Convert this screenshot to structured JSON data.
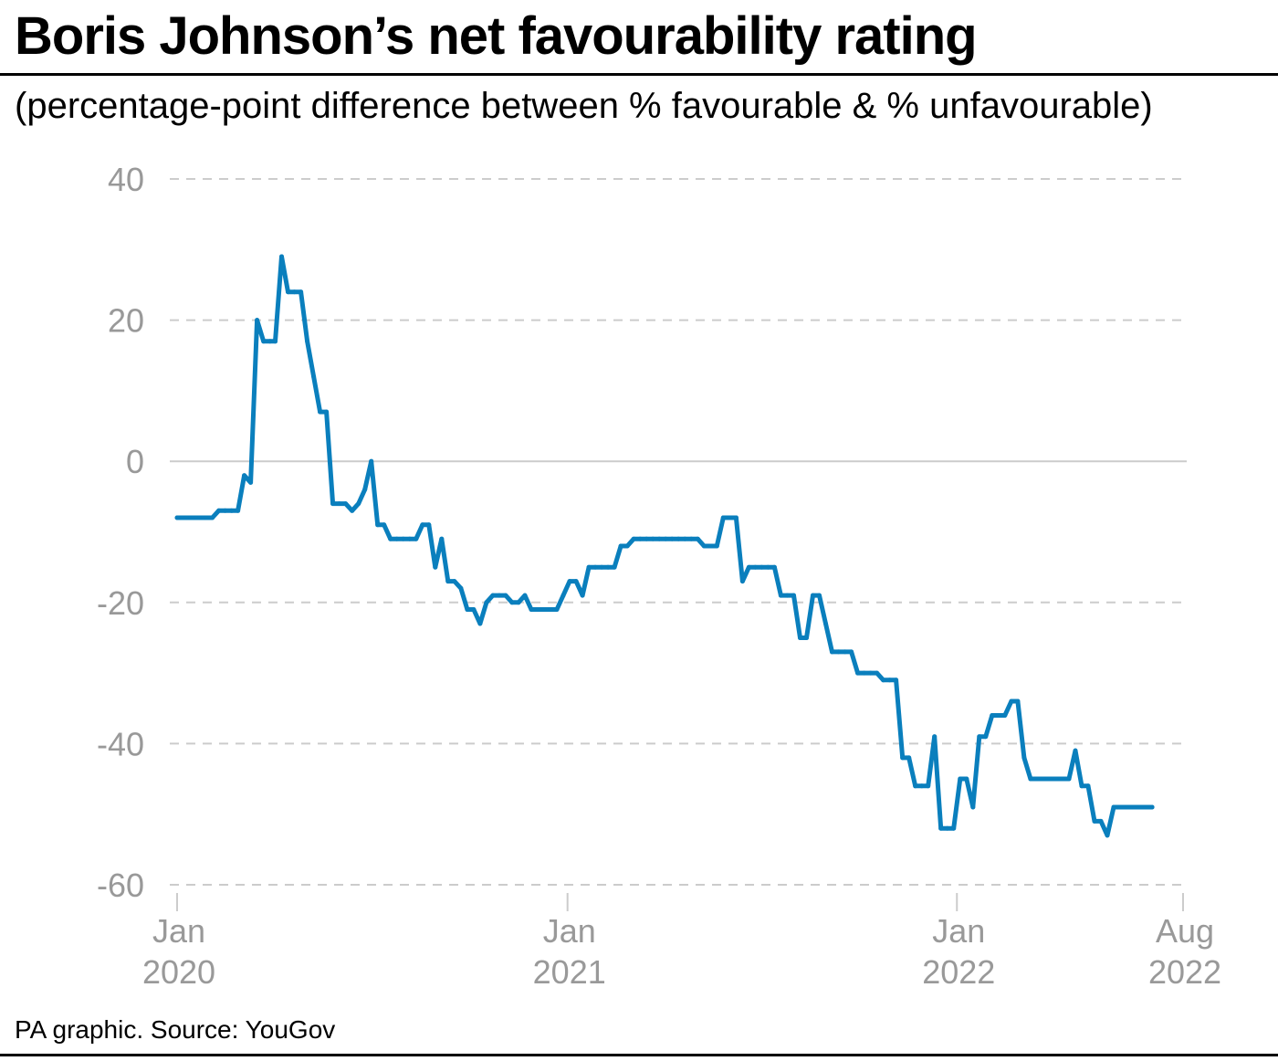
{
  "title": "Boris Johnson’s net favourability rating",
  "subtitle": "(percentage-point difference between % favourable & % unfavourable)",
  "source": "PA graphic. Source: YouGov",
  "colors": {
    "line": "#0a7fbd",
    "grid": "#cccccc",
    "tick_text": "#999999",
    "rule": "#000000"
  },
  "chart_data": {
    "type": "line",
    "title": "Boris Johnson’s net favourability rating",
    "subtitle": "(percentage-point difference between % favourable & % unfavourable)",
    "xlabel": "",
    "ylabel": "",
    "ylim": [
      -60,
      40
    ],
    "xlim": [
      "2020-01-01",
      "2022-08-01"
    ],
    "yticks": [
      {
        "value": 40,
        "label": "40"
      },
      {
        "value": 20,
        "label": "20"
      },
      {
        "value": 0,
        "label": "0"
      },
      {
        "value": -20,
        "label": "-20"
      },
      {
        "value": -40,
        "label": "-40"
      },
      {
        "value": -60,
        "label": "-60"
      }
    ],
    "xticks": [
      {
        "date": "2020-01-01",
        "line1": "Jan",
        "line2": "2020"
      },
      {
        "date": "2021-01-01",
        "line1": "Jan",
        "line2": "2021"
      },
      {
        "date": "2022-01-01",
        "line1": "Jan",
        "line2": "2022"
      },
      {
        "date": "2022-08-01",
        "line1": "Aug",
        "line2": "2022"
      }
    ],
    "grid": true,
    "legend": "none",
    "series": [
      {
        "points": [
          [
            "2020-01-01",
            -8
          ],
          [
            "2020-01-05",
            -8
          ],
          [
            "2020-01-10",
            -8
          ],
          [
            "2020-01-16",
            -8
          ],
          [
            "2020-01-22",
            -8
          ],
          [
            "2020-01-28",
            -8
          ],
          [
            "2020-02-03",
            -8
          ],
          [
            "2020-02-09",
            -7
          ],
          [
            "2020-02-15",
            -7
          ],
          [
            "2020-02-21",
            -7
          ],
          [
            "2020-02-27",
            -7
          ],
          [
            "2020-03-04",
            -2
          ],
          [
            "2020-03-10",
            -3
          ],
          [
            "2020-03-16",
            20
          ],
          [
            "2020-03-22",
            17
          ],
          [
            "2020-03-28",
            17
          ],
          [
            "2020-04-02",
            17
          ],
          [
            "2020-04-08",
            29
          ],
          [
            "2020-04-14",
            24
          ],
          [
            "2020-04-20",
            24
          ],
          [
            "2020-04-26",
            24
          ],
          [
            "2020-05-02",
            17
          ],
          [
            "2020-05-08",
            12
          ],
          [
            "2020-05-14",
            7
          ],
          [
            "2020-05-20",
            7
          ],
          [
            "2020-05-26",
            -6
          ],
          [
            "2020-06-01",
            -6
          ],
          [
            "2020-06-07",
            -6
          ],
          [
            "2020-06-13",
            -7
          ],
          [
            "2020-06-19",
            -6
          ],
          [
            "2020-06-25",
            -4
          ],
          [
            "2020-07-01",
            0
          ],
          [
            "2020-07-07",
            -9
          ],
          [
            "2020-07-13",
            -9
          ],
          [
            "2020-07-19",
            -11
          ],
          [
            "2020-07-25",
            -11
          ],
          [
            "2020-07-31",
            -11
          ],
          [
            "2020-08-06",
            -11
          ],
          [
            "2020-08-12",
            -11
          ],
          [
            "2020-08-18",
            -9
          ],
          [
            "2020-08-24",
            -9
          ],
          [
            "2020-08-30",
            -15
          ],
          [
            "2020-09-05",
            -11
          ],
          [
            "2020-09-11",
            -17
          ],
          [
            "2020-09-17",
            -17
          ],
          [
            "2020-09-23",
            -18
          ],
          [
            "2020-09-29",
            -21
          ],
          [
            "2020-10-05",
            -21
          ],
          [
            "2020-10-11",
            -23
          ],
          [
            "2020-10-17",
            -20
          ],
          [
            "2020-10-23",
            -19
          ],
          [
            "2020-10-29",
            -19
          ],
          [
            "2020-11-04",
            -19
          ],
          [
            "2020-11-10",
            -20
          ],
          [
            "2020-11-16",
            -20
          ],
          [
            "2020-11-22",
            -19
          ],
          [
            "2020-11-28",
            -21
          ],
          [
            "2020-12-04",
            -21
          ],
          [
            "2020-12-10",
            -21
          ],
          [
            "2020-12-16",
            -21
          ],
          [
            "2020-12-22",
            -21
          ],
          [
            "2020-12-28",
            -19
          ],
          [
            "2021-01-03",
            -17
          ],
          [
            "2021-01-09",
            -17
          ],
          [
            "2021-01-15",
            -19
          ],
          [
            "2021-01-21",
            -15
          ],
          [
            "2021-01-27",
            -15
          ],
          [
            "2021-02-02",
            -15
          ],
          [
            "2021-02-08",
            -15
          ],
          [
            "2021-02-14",
            -15
          ],
          [
            "2021-02-20",
            -12
          ],
          [
            "2021-02-26",
            -12
          ],
          [
            "2021-03-04",
            -11
          ],
          [
            "2021-03-10",
            -11
          ],
          [
            "2021-03-16",
            -11
          ],
          [
            "2021-03-22",
            -11
          ],
          [
            "2021-03-28",
            -11
          ],
          [
            "2021-04-03",
            -11
          ],
          [
            "2021-04-09",
            -11
          ],
          [
            "2021-04-15",
            -11
          ],
          [
            "2021-04-21",
            -11
          ],
          [
            "2021-04-27",
            -11
          ],
          [
            "2021-05-03",
            -11
          ],
          [
            "2021-05-09",
            -12
          ],
          [
            "2021-05-15",
            -12
          ],
          [
            "2021-05-21",
            -12
          ],
          [
            "2021-05-27",
            -8
          ],
          [
            "2021-06-02",
            -8
          ],
          [
            "2021-06-08",
            -8
          ],
          [
            "2021-06-14",
            -17
          ],
          [
            "2021-06-20",
            -15
          ],
          [
            "2021-06-26",
            -15
          ],
          [
            "2021-07-02",
            -15
          ],
          [
            "2021-07-08",
            -15
          ],
          [
            "2021-07-14",
            -15
          ],
          [
            "2021-07-20",
            -19
          ],
          [
            "2021-07-26",
            -19
          ],
          [
            "2021-08-01",
            -19
          ],
          [
            "2021-08-07",
            -25
          ],
          [
            "2021-08-13",
            -25
          ],
          [
            "2021-08-19",
            -19
          ],
          [
            "2021-08-25",
            -19
          ],
          [
            "2021-08-31",
            -23
          ],
          [
            "2021-09-06",
            -27
          ],
          [
            "2021-09-12",
            -27
          ],
          [
            "2021-09-18",
            -27
          ],
          [
            "2021-09-24",
            -27
          ],
          [
            "2021-09-30",
            -30
          ],
          [
            "2021-10-06",
            -30
          ],
          [
            "2021-10-12",
            -30
          ],
          [
            "2021-10-18",
            -30
          ],
          [
            "2021-10-24",
            -31
          ],
          [
            "2021-10-30",
            -31
          ],
          [
            "2021-11-05",
            -31
          ],
          [
            "2021-11-11",
            -42
          ],
          [
            "2021-11-17",
            -42
          ],
          [
            "2021-11-23",
            -46
          ],
          [
            "2021-11-29",
            -46
          ],
          [
            "2021-12-05",
            -46
          ],
          [
            "2021-12-11",
            -39
          ],
          [
            "2021-12-17",
            -52
          ],
          [
            "2021-12-23",
            -52
          ],
          [
            "2021-12-29",
            -52
          ],
          [
            "2022-01-04",
            -45
          ],
          [
            "2022-01-10",
            -45
          ],
          [
            "2022-01-16",
            -49
          ],
          [
            "2022-01-22",
            -39
          ],
          [
            "2022-01-28",
            -39
          ],
          [
            "2022-02-03",
            -36
          ],
          [
            "2022-02-09",
            -36
          ],
          [
            "2022-02-15",
            -36
          ],
          [
            "2022-02-21",
            -34
          ],
          [
            "2022-02-27",
            -34
          ],
          [
            "2022-03-05",
            -42
          ],
          [
            "2022-03-11",
            -45
          ],
          [
            "2022-03-17",
            -45
          ],
          [
            "2022-03-23",
            -45
          ],
          [
            "2022-03-29",
            -45
          ],
          [
            "2022-04-04",
            -45
          ],
          [
            "2022-04-10",
            -45
          ],
          [
            "2022-04-16",
            -45
          ],
          [
            "2022-04-22",
            -41
          ],
          [
            "2022-04-28",
            -46
          ],
          [
            "2022-05-04",
            -46
          ],
          [
            "2022-05-10",
            -51
          ],
          [
            "2022-05-16",
            -51
          ],
          [
            "2022-05-22",
            -53
          ],
          [
            "2022-05-28",
            -49
          ],
          [
            "2022-06-03",
            -49
          ],
          [
            "2022-06-09",
            -49
          ],
          [
            "2022-06-15",
            -49
          ],
          [
            "2022-06-21",
            -49
          ],
          [
            "2022-06-27",
            -49
          ],
          [
            "2022-07-03",
            -49
          ]
        ]
      }
    ]
  }
}
